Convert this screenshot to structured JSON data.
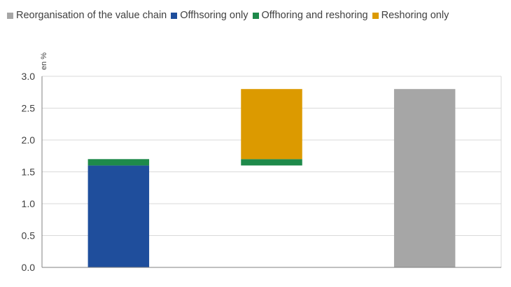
{
  "chart_data": {
    "type": "bar",
    "stacked": true,
    "unit_label": "en %",
    "title": "",
    "xlabel": "",
    "ylabel": "",
    "ylim": [
      0,
      3.0
    ],
    "yticks": [
      "0.0",
      "0.5",
      "1.0",
      "1.5",
      "2.0",
      "2.5",
      "3.0"
    ],
    "grid": true,
    "legend_position": "top",
    "categories": [
      "",
      "",
      ""
    ],
    "series": [
      {
        "key": "reorg",
        "name": "Reorganisation of the value chain",
        "color": "#a6a6a6",
        "values": [
          0,
          0,
          2.8
        ],
        "base": [
          0,
          0,
          0
        ]
      },
      {
        "key": "offshoring",
        "name": "Offhsoring only",
        "color": "#1f4e9c",
        "values": [
          1.6,
          0,
          0
        ],
        "base": [
          0,
          0,
          0
        ]
      },
      {
        "key": "both",
        "name": "Offhoring and reshoring",
        "color": "#1e8a4a",
        "values": [
          0.1,
          0.1,
          0
        ],
        "base": [
          1.6,
          1.6,
          0
        ]
      },
      {
        "key": "reshoring",
        "name": "Reshoring only",
        "color": "#dc9a00",
        "values": [
          0,
          1.1,
          0
        ],
        "base": [
          0,
          1.7,
          0
        ]
      }
    ]
  }
}
